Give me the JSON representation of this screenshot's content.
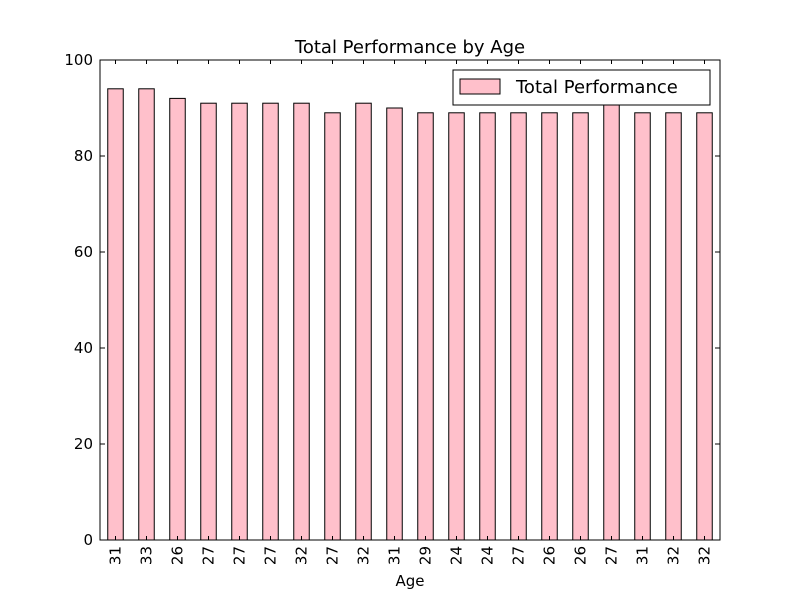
{
  "chart_data": {
    "type": "bar",
    "title": "Total Performance by Age",
    "xlabel": "Age",
    "ylabel": "",
    "ylim": [
      0,
      100
    ],
    "yticks": [
      0,
      20,
      40,
      60,
      80,
      100
    ],
    "grid": false,
    "legend_position": "upper-right",
    "categories": [
      "31",
      "33",
      "26",
      "27",
      "27",
      "27",
      "32",
      "27",
      "32",
      "31",
      "29",
      "24",
      "24",
      "27",
      "26",
      "26",
      "27",
      "31",
      "32",
      "32"
    ],
    "series": [
      {
        "name": "Total Performance",
        "color": "#ffc0cb",
        "values": [
          94,
          94,
          92,
          91,
          91,
          91,
          91,
          89,
          91,
          90,
          89,
          89,
          89,
          89,
          89,
          89,
          91,
          89,
          89,
          89
        ]
      }
    ]
  }
}
